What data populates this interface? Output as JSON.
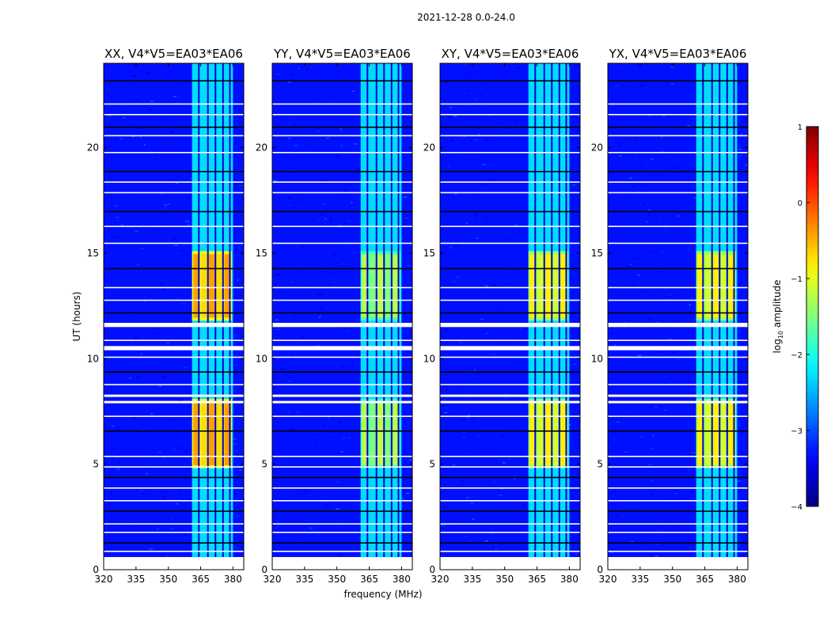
{
  "figure_title": "2021-12-28 0.0-24.0",
  "ylabel": "UT (hours)",
  "xlabel": "frequency (MHz)",
  "chart_data": {
    "type": "heatmap",
    "title": "2021-12-28 0.0-24.0",
    "xlabel": "frequency (MHz)",
    "ylabel": "UT (hours)",
    "xlim": [
      320,
      385
    ],
    "ylim": [
      0,
      24
    ],
    "xticks": [
      320,
      335,
      350,
      365,
      380
    ],
    "yticks": [
      0,
      5,
      10,
      15,
      20
    ],
    "panels": [
      {
        "title": "XX, V4*V5=EA03*EA06",
        "polarization": "XX",
        "peak_log_amp": -0.2
      },
      {
        "title": "YY, V4*V5=EA03*EA06",
        "polarization": "YY",
        "peak_log_amp": -1.0
      },
      {
        "title": "XY, V4*V5=EA03*EA06",
        "polarization": "XY",
        "peak_log_amp": -0.6
      },
      {
        "title": "YX, V4*V5=EA03*EA06",
        "polarization": "YX",
        "peak_log_amp": -0.6
      }
    ],
    "background_log_amp": -3.3,
    "rfi_band_mhz": [
      361,
      380
    ],
    "bright_periods_hours": [
      [
        11.8,
        15.1
      ],
      [
        4.8,
        8.1
      ]
    ],
    "blank_intervals_hours": [
      [
        0,
        0.6
      ],
      [
        11.5,
        11.7
      ],
      [
        10.4,
        10.6
      ],
      [
        8.2,
        8.3
      ],
      [
        7.9,
        8.0
      ]
    ],
    "colorbar": {
      "label": "log₁₀ amplitude",
      "label_main": "log",
      "label_sub": "10",
      "label_rest": " amplitude",
      "min": -4,
      "max": 1,
      "ticks": [
        "1",
        "0",
        "−1",
        "−2",
        "−3",
        "−4"
      ],
      "tick_values": [
        1,
        0,
        -1,
        -2,
        -3,
        -4
      ],
      "colormap": "jet"
    }
  }
}
